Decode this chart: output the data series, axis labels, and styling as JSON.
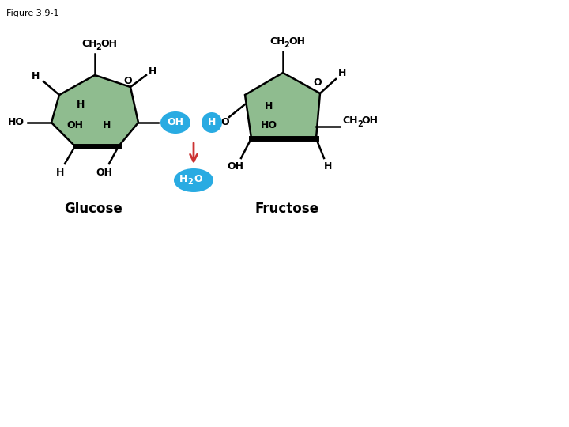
{
  "figure_label": "Figure 3.9-1",
  "background_color": "#ffffff",
  "ring_fill_color": "#8fbc8f",
  "ring_edge_color": "#000000",
  "bubble_fill_color": "#29abe2",
  "bubble_text_color": "#ffffff",
  "arrow_color": "#cc3333",
  "text_color": "#000000",
  "glucose_label": "Glucose",
  "fructose_label": "Fructose",
  "fig_width": 7.2,
  "fig_height": 5.4,
  "dpi": 100
}
